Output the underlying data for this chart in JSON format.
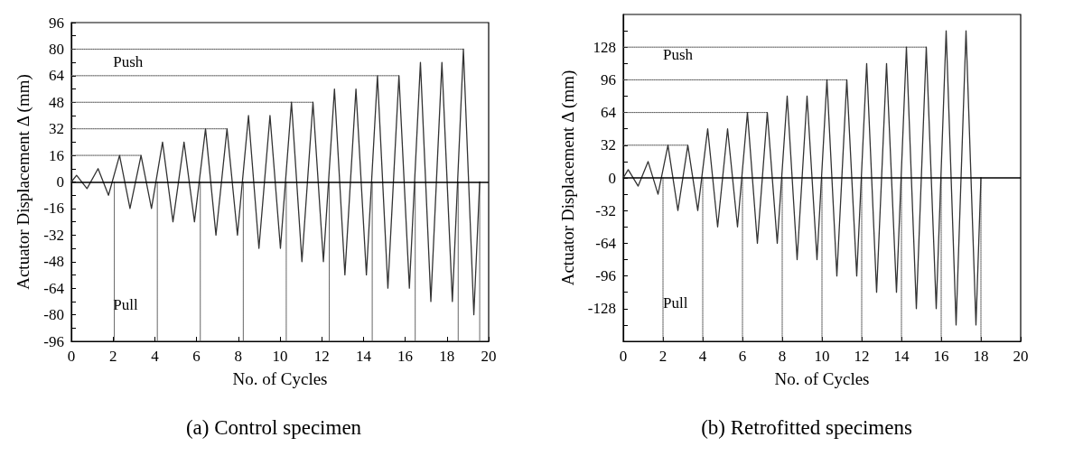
{
  "chart_data": [
    {
      "type": "line",
      "title": "(a) Control specimen",
      "xlabel": "No. of Cycles",
      "ylabel": "Actuator Displacement Δ (mm)",
      "xlim": [
        0,
        20
      ],
      "ylim": [
        -96,
        96
      ],
      "xticks": [
        0,
        2,
        4,
        6,
        8,
        10,
        12,
        14,
        16,
        18,
        20
      ],
      "yticks": [
        -96,
        {
          "value": -88,
          "label": null
        },
        -80,
        {
          "value": -72,
          "label": null
        },
        -64,
        {
          "value": -56,
          "label": null
        },
        -48,
        {
          "value": -40,
          "label": null
        },
        -32,
        {
          "value": -24,
          "label": null
        },
        -16,
        {
          "value": -8,
          "label": null
        },
        0,
        {
          "value": 8,
          "label": null
        },
        16,
        {
          "value": 24,
          "label": null
        },
        32,
        {
          "value": 40,
          "label": null
        },
        48,
        {
          "value": 56,
          "label": null
        },
        64,
        {
          "value": 72,
          "label": null
        },
        80,
        {
          "value": 88,
          "label": null
        },
        96
      ],
      "marker": "none",
      "annotations": [
        "Push",
        "Pull"
      ],
      "ref_lines": [
        {
          "axis": "y",
          "value": 0,
          "color": "#000000"
        }
      ],
      "series": [
        {
          "color": "#333333",
          "line_style": "solid",
          "x": [
            0,
            0.25,
            0.75,
            1.28,
            1.78,
            2.31,
            2.81,
            3.34,
            3.84,
            4.37,
            4.87,
            5.4,
            5.9,
            6.43,
            6.93,
            7.46,
            7.96,
            8.49,
            8.99,
            9.52,
            10.02,
            10.55,
            11.05,
            11.58,
            12.08,
            12.61,
            13.11,
            13.64,
            14.14,
            14.67,
            15.17,
            15.7,
            16.2,
            16.73,
            17.23,
            17.76,
            18.26,
            18.79,
            19.29,
            19.57
          ],
          "values": [
            0,
            4,
            -4,
            8,
            -8,
            16,
            -16,
            16,
            -16,
            24,
            -24,
            24,
            -24,
            32,
            -32,
            32,
            -32,
            40,
            -40,
            40,
            -40,
            48,
            -48,
            48,
            -48,
            56,
            -56,
            56,
            -56,
            64,
            -64,
            64,
            -64,
            72,
            -72,
            72,
            -72,
            80,
            -80,
            0
          ]
        },
        {
          "color": "#555555",
          "line_style": "dotted",
          "x": [
            0,
            3.34
          ],
          "values": [
            16,
            16
          ]
        },
        {
          "color": "#555555",
          "line_style": "dotted",
          "x": [
            0,
            7.46
          ],
          "values": [
            32,
            32
          ]
        },
        {
          "color": "#555555",
          "line_style": "dotted",
          "x": [
            0,
            11.58
          ],
          "values": [
            48,
            48
          ]
        },
        {
          "color": "#555555",
          "line_style": "dotted",
          "x": [
            0,
            15.7
          ],
          "values": [
            64,
            64
          ]
        },
        {
          "color": "#555555",
          "line_style": "dotted",
          "x": [
            0,
            18.79
          ],
          "values": [
            80,
            80
          ]
        },
        {
          "color": "#555555",
          "line_style": "dotted",
          "x": [
            2.06,
            2.06
          ],
          "values": [
            0,
            -96
          ]
        },
        {
          "color": "#555555",
          "line_style": "dotted",
          "x": [
            4.12,
            4.12
          ],
          "values": [
            0,
            -96
          ]
        },
        {
          "color": "#555555",
          "line_style": "dotted",
          "x": [
            6.18,
            6.18
          ],
          "values": [
            0,
            -96
          ]
        },
        {
          "color": "#555555",
          "line_style": "dotted",
          "x": [
            8.24,
            8.24
          ],
          "values": [
            0,
            -96
          ]
        },
        {
          "color": "#555555",
          "line_style": "dotted",
          "x": [
            10.3,
            10.3
          ],
          "values": [
            0,
            -96
          ]
        },
        {
          "color": "#555555",
          "line_style": "dotted",
          "x": [
            12.36,
            12.36
          ],
          "values": [
            0,
            -96
          ]
        },
        {
          "color": "#555555",
          "line_style": "dotted",
          "x": [
            14.42,
            14.42
          ],
          "values": [
            0,
            -96
          ]
        },
        {
          "color": "#555555",
          "line_style": "dotted",
          "x": [
            16.48,
            16.48
          ],
          "values": [
            0,
            -96
          ]
        },
        {
          "color": "#555555",
          "line_style": "dotted",
          "x": [
            18.54,
            18.54
          ],
          "values": [
            0,
            -96
          ]
        },
        {
          "color": "#555555",
          "line_style": "dotted",
          "x": [
            19.57,
            19.57
          ],
          "values": [
            0,
            -96
          ]
        }
      ]
    },
    {
      "type": "line",
      "title": "(b) Retrofitted specimens",
      "xlabel": "No. of Cycles",
      "ylabel": "Actuator Displacement Δ (mm)",
      "xlim": [
        0,
        20
      ],
      "ylim": [
        -160,
        160
      ],
      "xticks": [
        0,
        2,
        4,
        6,
        8,
        10,
        12,
        14,
        16,
        18,
        20
      ],
      "yticks": [
        {
          "value": -144,
          "label": null
        },
        -128,
        {
          "value": -112,
          "label": null
        },
        -96,
        {
          "value": -80,
          "label": null
        },
        -64,
        {
          "value": -48,
          "label": null
        },
        -32,
        {
          "value": -16,
          "label": null
        },
        0,
        {
          "value": 16,
          "label": null
        },
        32,
        {
          "value": 48,
          "label": null
        },
        64,
        {
          "value": 80,
          "label": null
        },
        96,
        {
          "value": 112,
          "label": null
        },
        128,
        {
          "value": 144,
          "label": null
        }
      ],
      "marker": "none",
      "annotations": [
        "Push",
        "Pull"
      ],
      "ref_lines": [
        {
          "axis": "y",
          "value": 0,
          "color": "#000000"
        }
      ],
      "series": [
        {
          "color": "#333333",
          "line_style": "solid",
          "x": [
            0,
            0.25,
            0.75,
            1.25,
            1.75,
            2.25,
            2.75,
            3.25,
            3.75,
            4.25,
            4.75,
            5.25,
            5.75,
            6.25,
            6.75,
            7.25,
            7.75,
            8.25,
            8.75,
            9.25,
            9.75,
            10.25,
            10.75,
            11.25,
            11.75,
            12.25,
            12.75,
            13.25,
            13.75,
            14.25,
            14.75,
            15.25,
            15.75,
            16.25,
            16.75,
            17.25,
            17.75,
            18
          ],
          "values": [
            0,
            8,
            -8,
            16,
            -16,
            32,
            -32,
            32,
            -32,
            48,
            -48,
            48,
            -48,
            64,
            -64,
            64,
            -64,
            80,
            -80,
            80,
            -80,
            96,
            -96,
            96,
            -96,
            112,
            -112,
            112,
            -112,
            128,
            -128,
            128,
            -128,
            144,
            -144,
            144,
            -144,
            0
          ]
        },
        {
          "color": "#555555",
          "line_style": "dotted",
          "x": [
            0,
            3.25
          ],
          "values": [
            32,
            32
          ]
        },
        {
          "color": "#555555",
          "line_style": "dotted",
          "x": [
            0,
            7.25
          ],
          "values": [
            64,
            64
          ]
        },
        {
          "color": "#555555",
          "line_style": "dotted",
          "x": [
            0,
            11.25
          ],
          "values": [
            96,
            96
          ]
        },
        {
          "color": "#555555",
          "line_style": "dotted",
          "x": [
            0,
            15.25
          ],
          "values": [
            128,
            128
          ]
        },
        {
          "color": "#555555",
          "line_style": "dotted",
          "x": [
            2,
            2
          ],
          "values": [
            0,
            -160
          ]
        },
        {
          "color": "#555555",
          "line_style": "dotted",
          "x": [
            4,
            4
          ],
          "values": [
            0,
            -160
          ]
        },
        {
          "color": "#555555",
          "line_style": "dotted",
          "x": [
            6,
            6
          ],
          "values": [
            0,
            -160
          ]
        },
        {
          "color": "#555555",
          "line_style": "dotted",
          "x": [
            8,
            8
          ],
          "values": [
            0,
            -160
          ]
        },
        {
          "color": "#555555",
          "line_style": "dotted",
          "x": [
            10,
            10
          ],
          "values": [
            0,
            -160
          ]
        },
        {
          "color": "#555555",
          "line_style": "dotted",
          "x": [
            12,
            12
          ],
          "values": [
            0,
            -160
          ]
        },
        {
          "color": "#555555",
          "line_style": "dotted",
          "x": [
            14,
            14
          ],
          "values": [
            0,
            -160
          ]
        },
        {
          "color": "#555555",
          "line_style": "dotted",
          "x": [
            16,
            16
          ],
          "values": [
            0,
            -160
          ]
        },
        {
          "color": "#555555",
          "line_style": "dotted",
          "x": [
            18,
            18
          ],
          "values": [
            0,
            -160
          ]
        }
      ]
    }
  ]
}
